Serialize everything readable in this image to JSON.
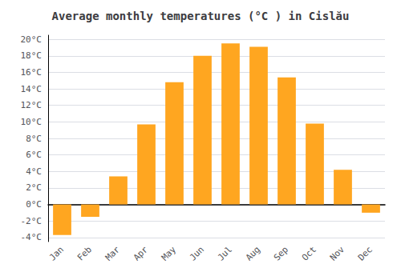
{
  "chart_data": {
    "type": "bar",
    "title": "Average monthly temperatures (°C ) in Cislău",
    "categories": [
      "Jan",
      "Feb",
      "Mar",
      "Apr",
      "May",
      "Jun",
      "Jul",
      "Aug",
      "Sep",
      "Oct",
      "Nov",
      "Dec"
    ],
    "values": [
      -3.7,
      -1.5,
      3.4,
      9.7,
      14.8,
      18.0,
      19.5,
      19.1,
      15.4,
      9.8,
      4.2,
      -1.0
    ],
    "color": "#FFA620",
    "ylim": [
      -4.5,
      20.5
    ],
    "yticks": [
      {
        "value": -4,
        "label": "-4°C"
      },
      {
        "value": -2,
        "label": "-2°C"
      },
      {
        "value": 0,
        "label": "0°C"
      },
      {
        "value": 2,
        "label": "2°C"
      },
      {
        "value": 4,
        "label": "4°C"
      },
      {
        "value": 6,
        "label": "6°C"
      },
      {
        "value": 8,
        "label": "8°C"
      },
      {
        "value": 10,
        "label": "10°C"
      },
      {
        "value": 12,
        "label": "12°C"
      },
      {
        "value": 14,
        "label": "14°C"
      },
      {
        "value": 16,
        "label": "16°C"
      },
      {
        "value": 18,
        "label": "18°C"
      },
      {
        "value": 20,
        "label": "20°C"
      }
    ],
    "grid": true
  }
}
